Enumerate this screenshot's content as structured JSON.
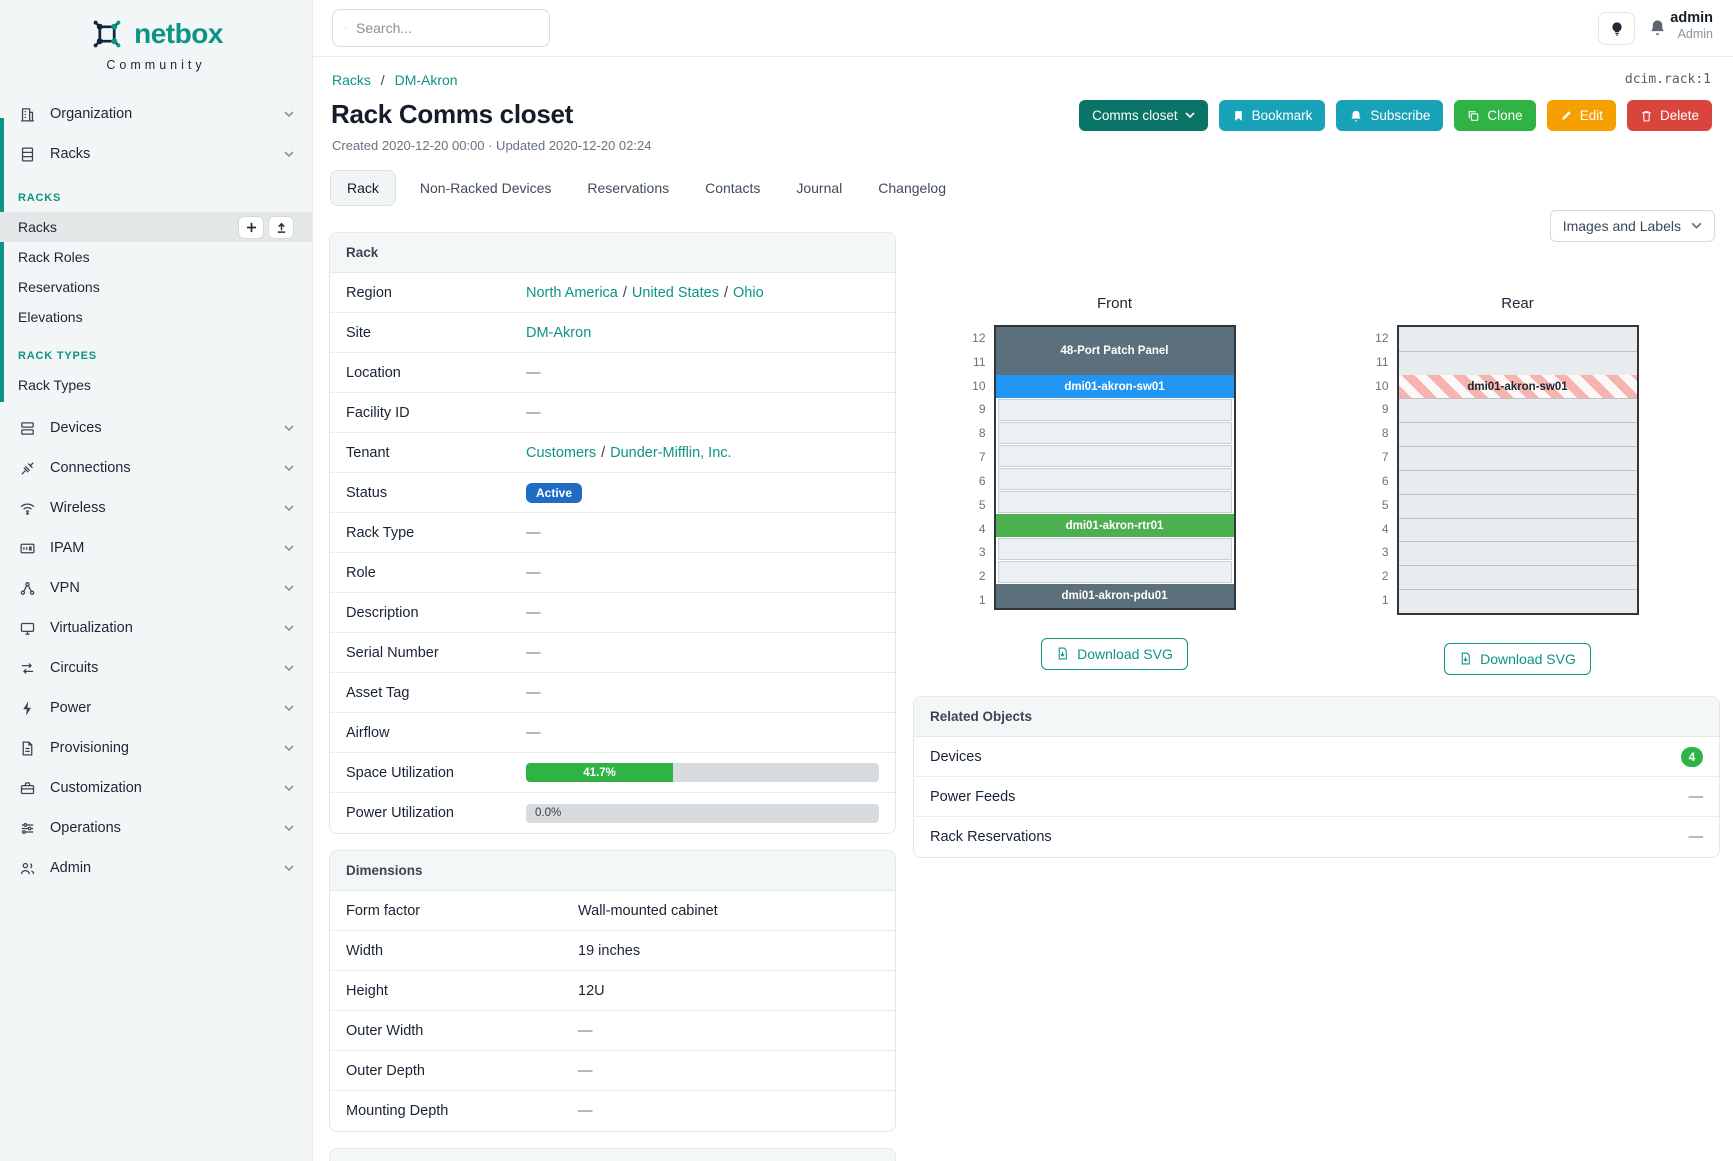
{
  "brand": {
    "logo_text": "netbox",
    "logo_sub": "Community"
  },
  "misc": {
    "sep": "/"
  },
  "topbar": {
    "search_placeholder": "Search...",
    "user_name": "admin",
    "user_role": "Admin"
  },
  "breadcrumb": {
    "items": [
      "Racks",
      "DM-Akron"
    ]
  },
  "context_id": "dcim.rack:1",
  "page": {
    "title": "Rack Comms closet",
    "meta": "Created 2020-12-20 00:00 · Updated 2020-12-20 02:24"
  },
  "actions": {
    "name_dropdown": "Comms closet",
    "bookmark": "Bookmark",
    "subscribe": "Subscribe",
    "clone": "Clone",
    "edit": "Edit",
    "delete": "Delete"
  },
  "tabs": [
    {
      "label": "Rack",
      "active": true
    },
    {
      "label": "Non-Racked Devices",
      "active": false
    },
    {
      "label": "Reservations",
      "active": false
    },
    {
      "label": "Contacts",
      "active": false
    },
    {
      "label": "Journal",
      "active": false
    },
    {
      "label": "Changelog",
      "active": false
    }
  ],
  "sidebar": {
    "top_groups": [
      {
        "label": "Organization"
      },
      {
        "label": "Racks"
      }
    ],
    "racks_section": {
      "header": "RACKS",
      "items": [
        "Racks",
        "Rack Roles",
        "Reservations",
        "Elevations"
      ]
    },
    "racktypes_section": {
      "header": "RACK TYPES",
      "items": [
        "Rack Types"
      ]
    },
    "groups": [
      {
        "label": "Devices"
      },
      {
        "label": "Connections"
      },
      {
        "label": "Wireless"
      },
      {
        "label": "IPAM"
      },
      {
        "label": "VPN"
      },
      {
        "label": "Virtualization"
      },
      {
        "label": "Circuits"
      },
      {
        "label": "Power"
      },
      {
        "label": "Provisioning"
      },
      {
        "label": "Customization"
      },
      {
        "label": "Operations"
      },
      {
        "label": "Admin"
      }
    ]
  },
  "rack_panel": {
    "title": "Rack",
    "rows": [
      {
        "label": "Region",
        "links": [
          "North America",
          "United States",
          "Ohio"
        ]
      },
      {
        "label": "Site",
        "links": [
          "DM-Akron"
        ]
      },
      {
        "label": "Location",
        "value": "—"
      },
      {
        "label": "Facility ID",
        "value": "—"
      },
      {
        "label": "Tenant",
        "links": [
          "Customers",
          "Dunder-Mifflin, Inc."
        ]
      },
      {
        "label": "Status",
        "badge": "Active",
        "badge_color": "#206bc4"
      },
      {
        "label": "Rack Type",
        "value": "—"
      },
      {
        "label": "Role",
        "value": "—"
      },
      {
        "label": "Description",
        "value": "—"
      },
      {
        "label": "Serial Number",
        "value": "—"
      },
      {
        "label": "Asset Tag",
        "value": "—"
      },
      {
        "label": "Airflow",
        "value": "—"
      },
      {
        "label": "Space Utilization",
        "progress": {
          "css_width": "41.7%",
          "label": "41.7%",
          "color": "#2fb344"
        }
      },
      {
        "label": "Power Utilization",
        "progress": {
          "css_width": "0%",
          "label": "0.0%"
        }
      }
    ]
  },
  "dimensions_panel": {
    "title": "Dimensions",
    "rows": [
      {
        "label": "Form factor",
        "value": "Wall-mounted cabinet"
      },
      {
        "label": "Width",
        "value": "19 inches"
      },
      {
        "label": "Height",
        "value": "12U"
      },
      {
        "label": "Outer Width",
        "value": "—"
      },
      {
        "label": "Outer Depth",
        "value": "—"
      },
      {
        "label": "Mounting Depth",
        "value": "—"
      }
    ]
  },
  "elevations": {
    "view_dropdown": "Images and Labels",
    "unit_numbers": [
      "12",
      "11",
      "10",
      "9",
      "8",
      "7",
      "6",
      "5",
      "4",
      "3",
      "2",
      "1"
    ],
    "front": {
      "title": "Front",
      "download": "Download SVG"
    },
    "rear": {
      "title": "Rear",
      "download": "Download SVG"
    },
    "devices": {
      "patch_panel": {
        "label": "48-Port Patch Panel",
        "color": "#5b6f7d",
        "units": "12-11"
      },
      "switch": {
        "label": "dmi01-akron-sw01",
        "color": "#2196f3",
        "units": "10"
      },
      "router": {
        "label": "dmi01-akron-rtr01",
        "color": "#4caf50",
        "units": "4"
      },
      "pdu": {
        "label": "dmi01-akron-pdu01",
        "color": "#5b6f7d",
        "units": "1"
      }
    }
  },
  "related_panel": {
    "title": "Related Objects",
    "rows": [
      {
        "label": "Devices",
        "count": "4"
      },
      {
        "label": "Power Feeds",
        "value": "—"
      },
      {
        "label": "Rack Reservations",
        "value": "—"
      }
    ]
  },
  "colors": {
    "brand_teal": "#0e9384",
    "btn_rename": "#0b7468",
    "btn_bookmark": "#17a2b8",
    "btn_subscribe": "#17a2b8",
    "btn_clone": "#2fb344",
    "btn_edit": "#f59f00",
    "btn_delete": "#d9443c",
    "status_active": "#206bc4",
    "progress_green": "#2fb344",
    "badge_count": "#2fb344"
  }
}
